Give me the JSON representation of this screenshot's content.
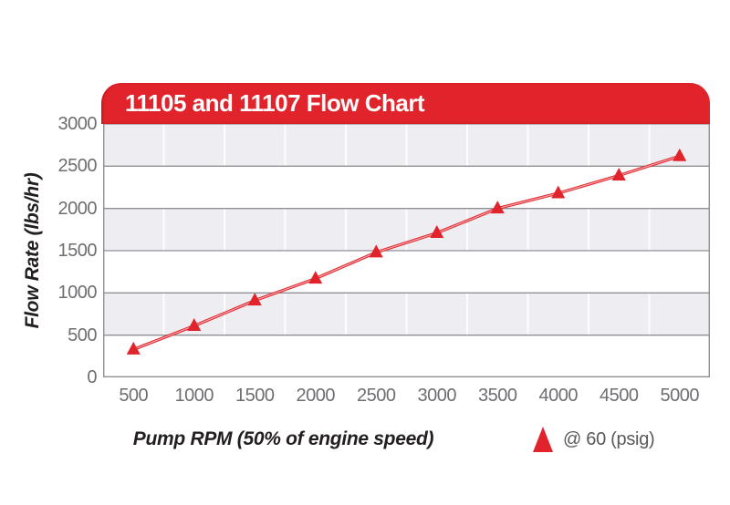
{
  "header": {
    "title": "11105 and 11107 Flow Chart"
  },
  "chart_data": {
    "type": "line",
    "title": "11105 and 11107 Flow Chart",
    "x": [
      500,
      1000,
      1500,
      2000,
      2500,
      3000,
      3500,
      4000,
      4500,
      5000
    ],
    "series": [
      {
        "name": "@ 60 (psig)",
        "marker": "triangle-up",
        "color": "#E1242B",
        "values": [
          330,
          610,
          910,
          1170,
          1480,
          1710,
          2000,
          2180,
          2390,
          2620
        ]
      }
    ],
    "xlabel": "Pump RPM (50% of engine speed)",
    "ylabel": "Flow Rate (lbs/hr)",
    "ylim": [
      0,
      3000
    ],
    "y_ticks": [
      0,
      500,
      1000,
      1500,
      2000,
      2500,
      3000
    ],
    "x_ticks": [
      500,
      1000,
      1500,
      2000,
      2500,
      3000,
      3500,
      4000,
      4500,
      5000
    ],
    "grid": "horizontal-gridlines-with-alternating-bands",
    "legend_position": "bottom-right"
  },
  "legend": {
    "marker": "triangle-up-icon",
    "label": "@ 60 (psig)"
  },
  "colors": {
    "accent_red": "#E1242B",
    "line_core_light": "#F7A6AA",
    "band_gray": "#EDEDF2",
    "grid_line": "#8F9094",
    "tick_text": "#6D6E71",
    "axis_title_text": "#231F20",
    "legend_text": "#58595B",
    "title_text": "#FFFFFF"
  }
}
